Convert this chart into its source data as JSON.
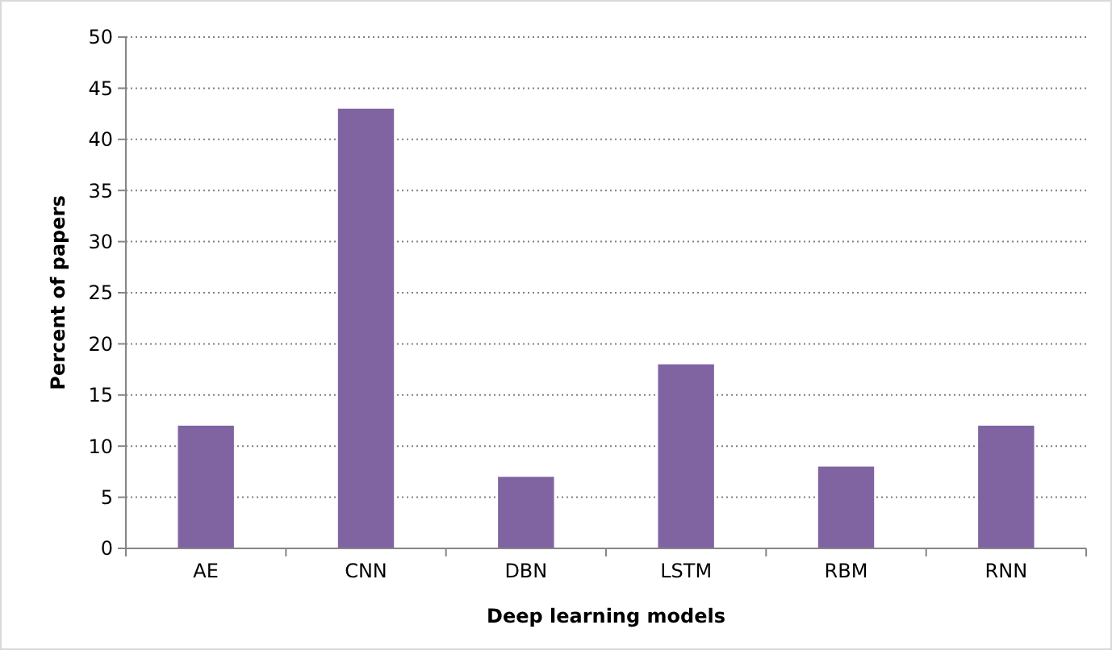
{
  "chart_data": {
    "type": "bar",
    "xlabel": "Deep learning models",
    "ylabel": "Percent of papers",
    "categories": [
      "AE",
      "CNN",
      "DBN",
      "LSTM",
      "RBM",
      "RNN"
    ],
    "values": [
      12,
      43,
      7,
      18,
      8,
      12
    ],
    "color": "#8064a2",
    "ylim": [
      0,
      50
    ],
    "yticks": [
      0,
      5,
      10,
      15,
      20,
      25,
      30,
      35,
      40,
      45,
      50
    ],
    "grid": "y"
  }
}
